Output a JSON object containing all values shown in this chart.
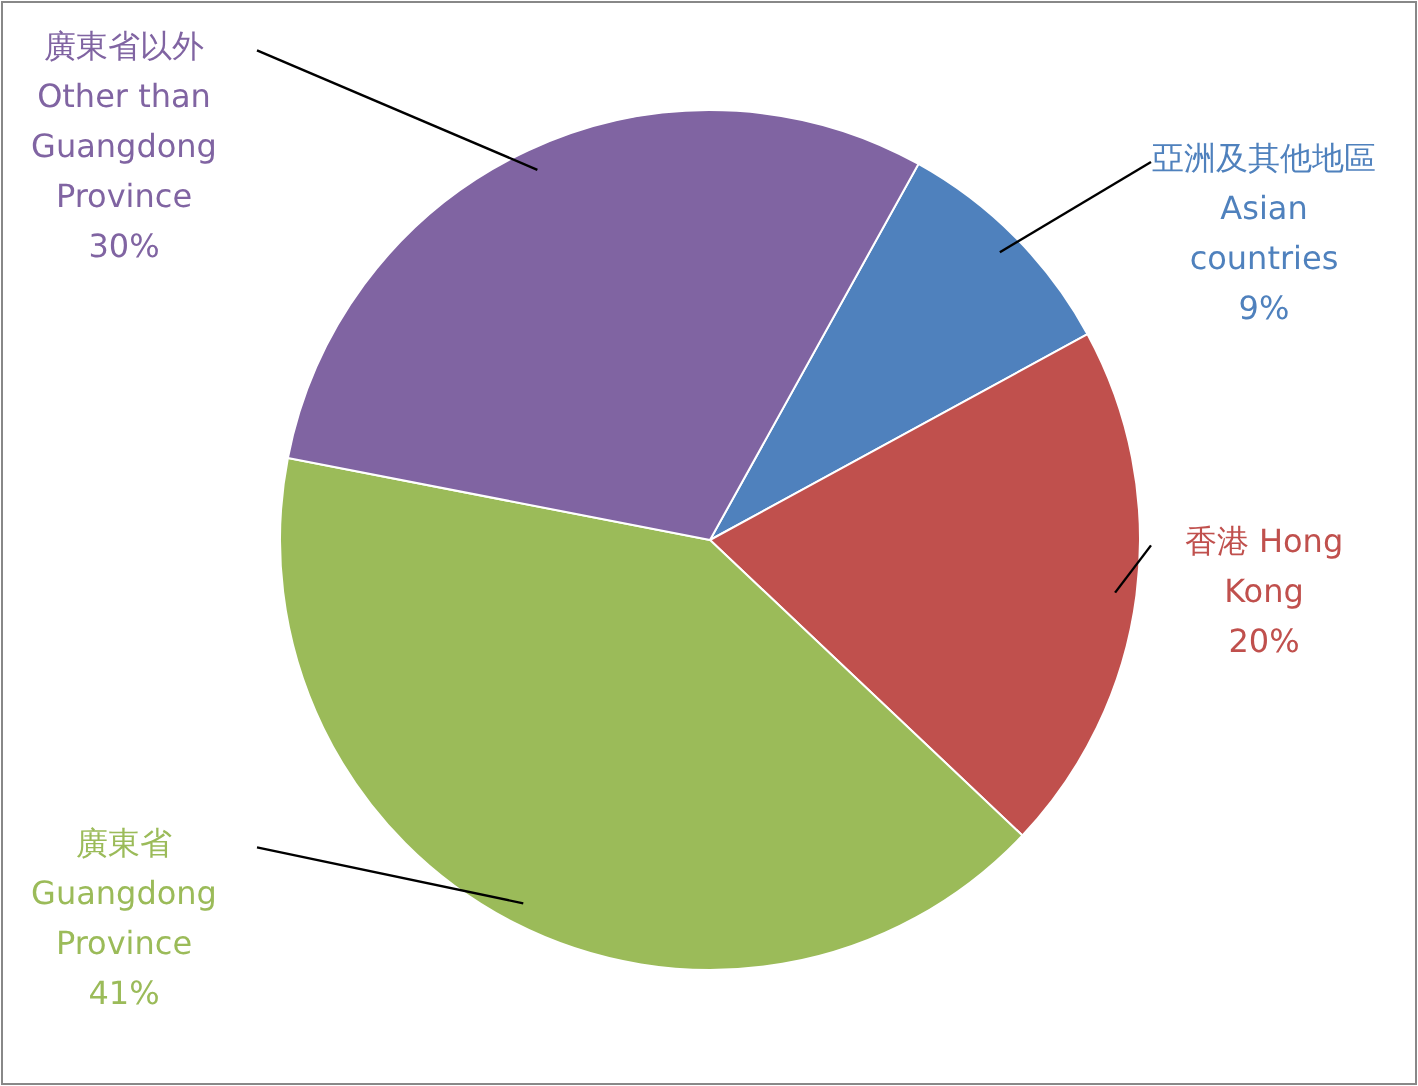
{
  "chart_data": {
    "type": "pie",
    "categories": [
      "亞洲及其他地區 Asian countries",
      "香港 Hong Kong",
      "廣東省 Guangdong Province",
      "廣東省以外 Other than Guangdong Province"
    ],
    "values": [
      9,
      20,
      41,
      30
    ],
    "colors": [
      "#4f81bd",
      "#c0504d",
      "#9bbb59",
      "#8064a2"
    ],
    "value_labels": [
      "9%",
      "20%",
      "41%",
      "30%"
    ]
  }
}
